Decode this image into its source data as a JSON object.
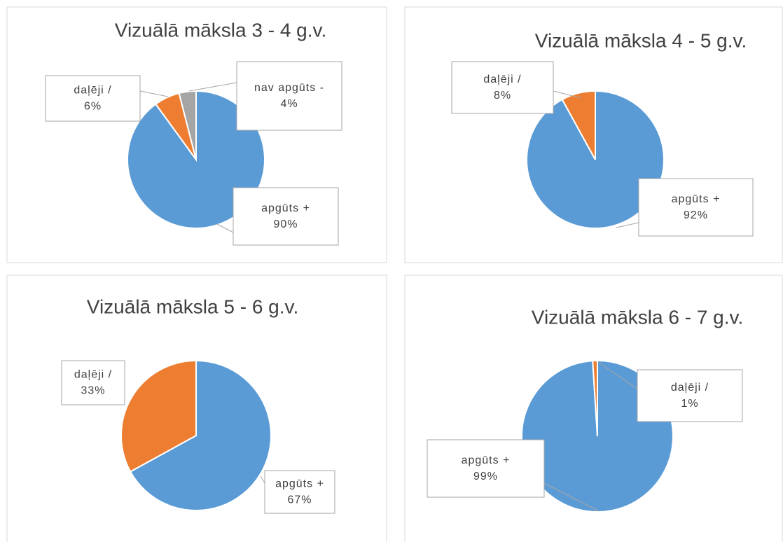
{
  "chart_data": [
    {
      "type": "pie",
      "title": "Vizuālā māksla 3 - 4 g.v.",
      "categories": [
        "apgūts +",
        "daļēji /",
        "nav apgūts -"
      ],
      "values": [
        90,
        6,
        4
      ],
      "value_labels": [
        "90%",
        "6%",
        "4%"
      ],
      "colors": [
        "#5b9bd5",
        "#ed7d31",
        "#a5a5a5"
      ]
    },
    {
      "type": "pie",
      "title": "Vizuālā māksla 4 - 5 g.v.",
      "categories": [
        "apgūts +",
        "daļēji /"
      ],
      "values": [
        92,
        8
      ],
      "value_labels": [
        "92%",
        "8%"
      ],
      "colors": [
        "#5b9bd5",
        "#ed7d31"
      ]
    },
    {
      "type": "pie",
      "title": "Vizuālā māksla 5 - 6 g.v.",
      "categories": [
        "apgūts +",
        "daļēji /"
      ],
      "values": [
        67,
        33
      ],
      "value_labels": [
        "67%",
        "33%"
      ],
      "colors": [
        "#5b9bd5",
        "#ed7d31"
      ]
    },
    {
      "type": "pie",
      "title": "Vizuālā māksla 6 - 7 g.v.",
      "categories": [
        "apgūts +",
        "daļēji /"
      ],
      "values": [
        99,
        1
      ],
      "value_labels": [
        "99%",
        "1%"
      ],
      "colors": [
        "#5b9bd5",
        "#ed7d31"
      ]
    }
  ]
}
